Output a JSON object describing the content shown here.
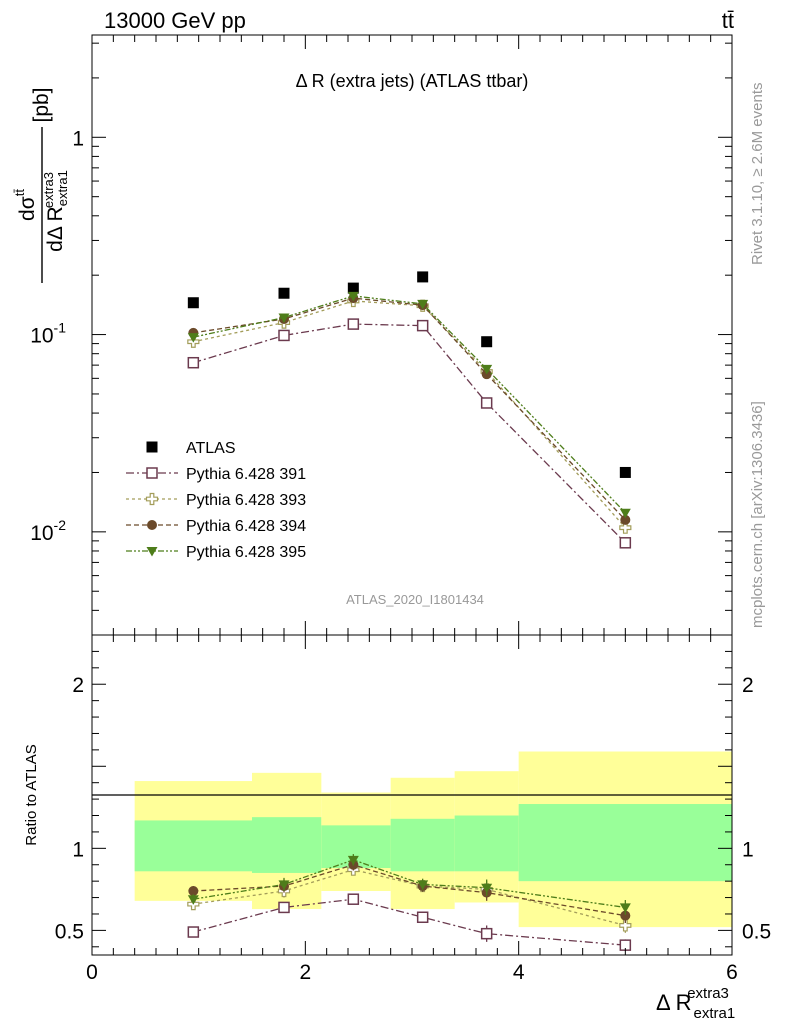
{
  "header": {
    "left": "13000 GeV pp",
    "right": "tt̄"
  },
  "side_labels": {
    "rivet": "Rivet 3.1.10, ≥ 2.6M events",
    "mcplots": "mcplots.cern.ch [arXiv:1306.3436]"
  },
  "colors": {
    "atlas": "#000000",
    "py391": "#6b3a4e",
    "py393": "#a39d5a",
    "py394": "#6b4a2a",
    "py395": "#4e7d1a",
    "band_inner": "#99ff99",
    "band_outer": "#ffff99"
  },
  "chart_data": [
    {
      "type": "scatter",
      "title": "Δ R (extra jets) (ATLAS ttbar)",
      "ylabel": "dσ^{tt̄}/dΔ R_{extra1}^{extra3} [pb]",
      "watermark": "ATLAS_2020_I1801434",
      "yscale": "log",
      "xlim": [
        0,
        6
      ],
      "ylim": [
        0.003,
        3.3
      ],
      "y_ticks": [
        {
          "value": 1,
          "label": "1"
        },
        {
          "value": 0.1,
          "label": "10^-1"
        },
        {
          "value": 0.01,
          "label": "10^-2"
        }
      ],
      "legend_position": "lower-left",
      "x": [
        0.95,
        1.8,
        2.45,
        3.1,
        3.7,
        5.0
      ],
      "series": [
        {
          "name": "ATLAS",
          "key": "atlas",
          "marker": "square-filled",
          "values": [
            0.145,
            0.162,
            0.172,
            0.196,
            0.092,
            0.02
          ]
        },
        {
          "name": "Pythia 6.428 391",
          "key": "py391",
          "marker": "square-open",
          "values": [
            0.072,
            0.099,
            0.113,
            0.111,
            0.045,
            0.0088
          ]
        },
        {
          "name": "Pythia 6.428 393",
          "key": "py393",
          "marker": "cross-open",
          "values": [
            0.092,
            0.115,
            0.148,
            0.14,
            0.065,
            0.0105
          ]
        },
        {
          "name": "Pythia 6.428 394",
          "key": "py394",
          "marker": "circle-filled",
          "values": [
            0.102,
            0.12,
            0.153,
            0.141,
            0.063,
            0.0115
          ]
        },
        {
          "name": "Pythia 6.428 395",
          "key": "py395",
          "marker": "triangle-down-filled",
          "values": [
            0.097,
            0.122,
            0.157,
            0.143,
            0.067,
            0.0125
          ]
        }
      ]
    },
    {
      "type": "scatter",
      "ylabel": "Ratio to ATLAS",
      "xlabel": "Δ R_{extra1}^{extra3}",
      "xlim": [
        0,
        6
      ],
      "ylim": [
        0.35,
        2.3
      ],
      "x_ticks": [
        0,
        2,
        4,
        6
      ],
      "y_ticks": [
        0.5,
        1,
        2
      ],
      "bands": [
        {
          "x0": 0.4,
          "x1": 1.5,
          "outer": [
            0.68,
            1.41
          ],
          "inner": [
            0.86,
            1.17
          ]
        },
        {
          "x0": 1.5,
          "x1": 2.15,
          "outer": [
            0.63,
            1.46
          ],
          "inner": [
            0.85,
            1.19
          ]
        },
        {
          "x0": 2.15,
          "x1": 2.8,
          "outer": [
            0.74,
            1.34
          ],
          "inner": [
            0.88,
            1.14
          ]
        },
        {
          "x0": 2.8,
          "x1": 3.4,
          "outer": [
            0.63,
            1.43
          ],
          "inner": [
            0.86,
            1.18
          ]
        },
        {
          "x0": 3.4,
          "x1": 4.0,
          "outer": [
            0.67,
            1.47
          ],
          "inner": [
            0.86,
            1.2
          ]
        },
        {
          "x0": 4.0,
          "x1": 6.0,
          "outer": [
            0.52,
            1.59
          ],
          "inner": [
            0.8,
            1.27
          ]
        }
      ],
      "x": [
        0.95,
        1.8,
        2.45,
        3.1,
        3.7,
        5.0
      ],
      "series": [
        {
          "name": "Pythia 6.428 391",
          "key": "py391",
          "marker": "square-open",
          "values": [
            0.49,
            0.64,
            0.69,
            0.58,
            0.48,
            0.41
          ],
          "errors": [
            0.02,
            0.03,
            0.025,
            0.025,
            0.05,
            0.035
          ]
        },
        {
          "name": "Pythia 6.428 393",
          "key": "py393",
          "marker": "cross-open",
          "values": [
            0.66,
            0.74,
            0.87,
            0.77,
            0.75,
            0.53
          ],
          "errors": [
            0.03,
            0.04,
            0.035,
            0.035,
            0.05,
            0.045
          ]
        },
        {
          "name": "Pythia 6.428 394",
          "key": "py394",
          "marker": "circle-filled",
          "values": [
            0.74,
            0.77,
            0.9,
            0.77,
            0.73,
            0.59
          ],
          "errors": [
            0.03,
            0.04,
            0.035,
            0.035,
            0.05,
            0.045
          ]
        },
        {
          "name": "Pythia 6.428 395",
          "key": "py395",
          "marker": "triangle-down-filled",
          "values": [
            0.69,
            0.78,
            0.93,
            0.78,
            0.76,
            0.64
          ],
          "errors": [
            0.03,
            0.04,
            0.035,
            0.035,
            0.05,
            0.045
          ]
        }
      ]
    }
  ]
}
